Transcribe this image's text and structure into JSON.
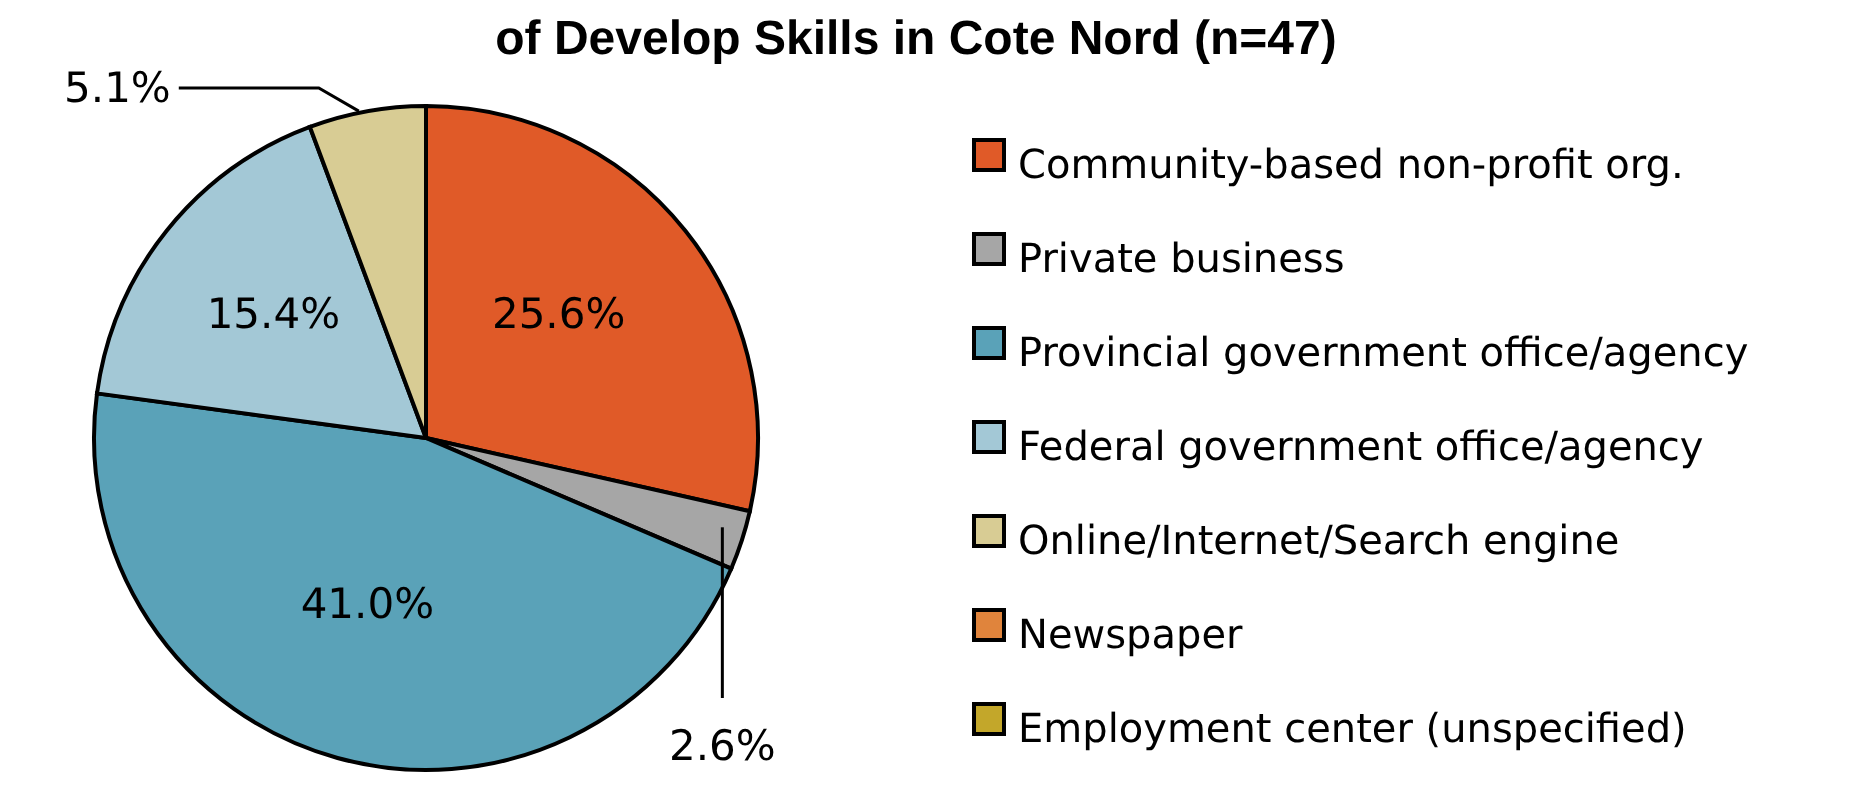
{
  "chart_data": {
    "type": "pie",
    "title": "of Develop Skills in Cote Nord (n=47)",
    "categories": [
      "Community-based non-profit org.",
      "Private business",
      "Provincial government office/agency",
      "Federal government office/agency",
      "Online/Internet/Search engine",
      "Newspaper",
      "Employment center (unspecified)"
    ],
    "values": [
      25.6,
      2.6,
      41.0,
      15.4,
      5.1,
      null,
      null
    ],
    "value_labels": [
      "25.6%",
      "2.6%",
      "41.0%",
      "15.4%",
      "5.1%",
      null,
      null
    ],
    "colors": [
      "#e05a28",
      "#a6a6a6",
      "#5aa2b8",
      "#a3c8d6",
      "#d8cc94",
      "#e0843c",
      "#c3a72a"
    ],
    "legend": "right"
  }
}
